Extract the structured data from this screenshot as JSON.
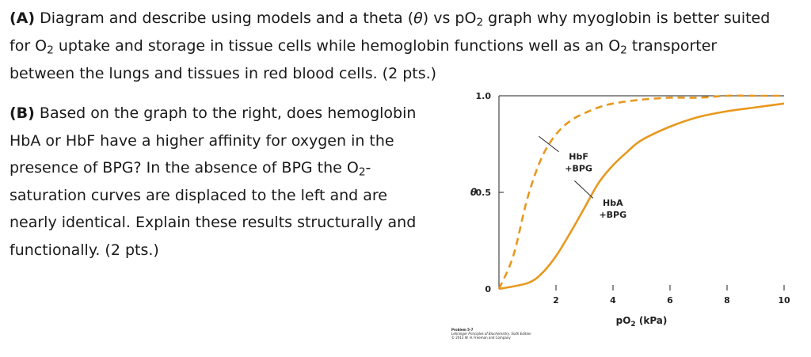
{
  "question_a": {
    "label": "(A)",
    "line1_a": "Diagram and describe using models and a theta (",
    "theta": "θ",
    "line1_b": ") vs pO",
    "sub2": "2",
    "line1_c": " graph why myoglobin is better suited",
    "line2_a": "for O",
    "line2_b": " uptake and storage in tissue cells while hemoglobin functions well as an O",
    "line2_c": " transporter",
    "line3": "between the lungs and tissues in red blood cells. (2 pts.)"
  },
  "question_b": {
    "label": "(B)",
    "line1": "Based on the graph to the right, does hemoglobin",
    "line2": "HbA or HbF have a higher affinity for oxygen in the",
    "line3_a": "presence of BPG? In the absence of BPG the O",
    "line3_b": "-",
    "line4": "saturation curves are displaced to the left and are",
    "line5": "nearly identical.  Explain these results structurally and",
    "line6": "functionally. (2 pts.)"
  },
  "chart_data": {
    "type": "line",
    "xlabel_main": "pO",
    "xlabel_sub": "2",
    "xlabel_unit": " (kPa)",
    "ylabel": "θ",
    "xlim": [
      0,
      10
    ],
    "ylim": [
      0,
      1.0
    ],
    "x_ticks": [
      2,
      4,
      6,
      8,
      10
    ],
    "x_tick_labels": [
      "2",
      "4",
      "6",
      "8",
      "10"
    ],
    "y_ticks": [
      0,
      0.5,
      1.0
    ],
    "y_tick_labels": [
      "0",
      "0.5",
      "1.0"
    ],
    "grid": false,
    "series": [
      {
        "name_line1": "HbF",
        "name_line2": "+BPG",
        "style": "dashed",
        "color": "#E8981E",
        "x": [
          0,
          0.5,
          1,
          1.5,
          2,
          2.5,
          3,
          3.5,
          4,
          5,
          6,
          7,
          8,
          9,
          10
        ],
        "y": [
          0,
          0.17,
          0.47,
          0.68,
          0.8,
          0.87,
          0.91,
          0.94,
          0.96,
          0.98,
          0.99,
          0.99,
          1.0,
          1.0,
          1.0
        ]
      },
      {
        "name_line1": "HbA",
        "name_line2": "+BPG",
        "style": "solid",
        "color": "#E8981E",
        "x": [
          0,
          1,
          1.5,
          2,
          2.5,
          3,
          3.5,
          4,
          4.5,
          5,
          6,
          7,
          8,
          9,
          10
        ],
        "y": [
          0,
          0.03,
          0.08,
          0.17,
          0.29,
          0.42,
          0.55,
          0.64,
          0.71,
          0.77,
          0.84,
          0.89,
          0.92,
          0.94,
          0.96
        ]
      }
    ],
    "credit": [
      "Problem 5-7",
      "Lehninger Principles of Biochemistry, Sixth Edition",
      "© 2013 W. H. Freeman and Company"
    ]
  }
}
